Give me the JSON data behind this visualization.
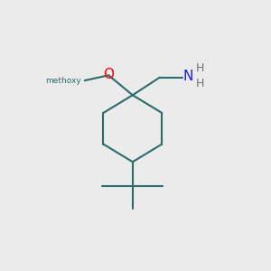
{
  "bg_color": "#ebebeb",
  "ring_color": "#2d6b6b",
  "o_color": "#ff0000",
  "n_color": "#1a1aee",
  "h_color": "#707070",
  "line_width": 1.5,
  "fig_size": [
    3.0,
    3.0
  ],
  "dpi": 100,
  "methoxy_text": "methoxy",
  "o_text": "O",
  "n_text": "N",
  "h_text": "H"
}
